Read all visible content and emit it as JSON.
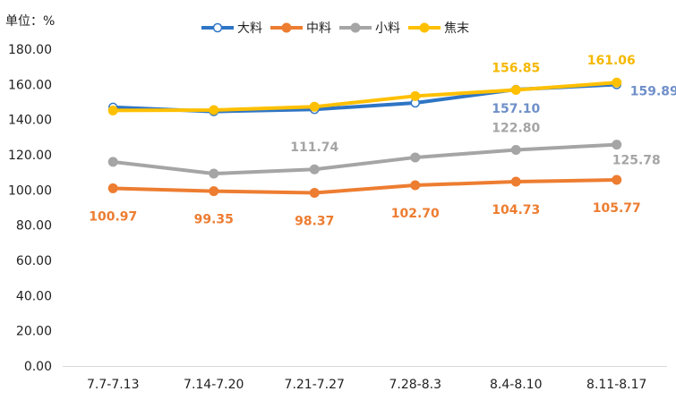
{
  "chart_data": {
    "type": "line",
    "unit_label": "单位：%",
    "categories": [
      "7.7-7.13",
      "7.14-7.20",
      "7.21-7.27",
      "7.28-8.3",
      "8.4-8.10",
      "8.11-8.17"
    ],
    "ylim": [
      0,
      180
    ],
    "yticks": [
      "0.00",
      "20.00",
      "40.00",
      "60.00",
      "80.00",
      "100.00",
      "120.00",
      "140.00",
      "160.00",
      "180.00"
    ],
    "grid": false,
    "legend_position": "top-center",
    "series": [
      {
        "name": "大料",
        "color": "#2e75c5",
        "marker": "hollow",
        "values": [
          147.0,
          144.6,
          145.8,
          149.5,
          157.1,
          159.89
        ],
        "labels": [
          null,
          null,
          null,
          null,
          "157.10",
          "159.89"
        ]
      },
      {
        "name": "中料",
        "color": "#ed7d31",
        "marker": "filled",
        "values": [
          100.97,
          99.35,
          98.37,
          102.7,
          104.73,
          105.77
        ],
        "labels": [
          "100.97",
          "99.35",
          "98.37",
          "102.70",
          "104.73",
          "105.77"
        ]
      },
      {
        "name": "小料",
        "color": "#a5a5a5",
        "marker": "filled",
        "values": [
          116.0,
          109.3,
          111.74,
          118.5,
          122.8,
          125.78
        ],
        "labels": [
          null,
          null,
          "111.74",
          null,
          "122.80",
          "125.78"
        ]
      },
      {
        "name": "焦末",
        "color": "#ffc000",
        "marker": "filled",
        "values": [
          145.2,
          145.4,
          147.3,
          153.4,
          156.85,
          161.06
        ],
        "labels": [
          null,
          null,
          null,
          null,
          "156.85",
          "161.06"
        ]
      }
    ]
  }
}
